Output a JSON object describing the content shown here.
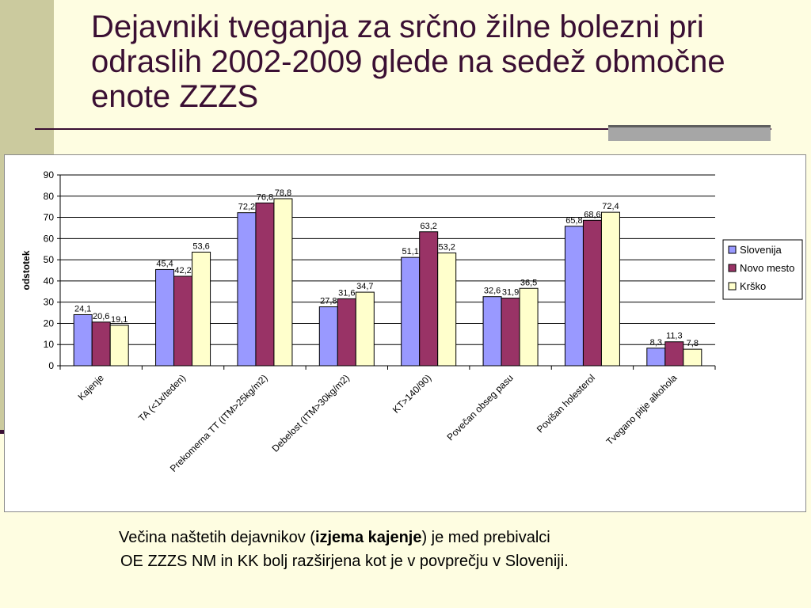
{
  "slide": {
    "title": "Dejavniki tveganja za srčno žilne bolezni pri odraslih 2002-2009 glede na sedež območne enote ZZZS",
    "caption": {
      "before": "Večina naštetih dejavnikov (",
      "bold": "izjema kajenje",
      "after": ") je med prebivalci",
      "line2": "OE ZZZS NM in KK bolj razširjena kot je v povprečju v Sloveniji."
    }
  },
  "colors": {
    "background": "#FEFDE1",
    "accent": "#3A0F33",
    "series": [
      "#9999FF",
      "#993366",
      "#FFFFCC"
    ]
  },
  "chart_data": {
    "type": "bar",
    "ylabel": "odstotek",
    "xlabel": "",
    "ylim": [
      0,
      90
    ],
    "yticks": [
      0,
      10,
      20,
      30,
      40,
      50,
      60,
      70,
      80,
      90
    ],
    "grid": true,
    "legend_position": "right",
    "categories": [
      "Kajenje",
      "TA (<1x/teden)",
      "Prekomerna TT (ITM>25kg/m2)",
      "Debelost (ITM>30kg/m2)",
      "KT>140/90)",
      "Povečan obseg pasu",
      "Povišan holesterol",
      "Tvegano pitje alkohola"
    ],
    "series": [
      {
        "name": "Slovenija",
        "values": [
          24.1,
          45.4,
          72.2,
          27.8,
          51.1,
          32.6,
          65.8,
          8.3
        ],
        "labels": [
          "24,1",
          "45,4",
          "72,2",
          "27,8",
          "51,1",
          "32,6",
          "65,8",
          "8,3"
        ]
      },
      {
        "name": "Novo mesto",
        "values": [
          20.6,
          42.2,
          76.8,
          31.6,
          63.2,
          31.9,
          68.6,
          11.3
        ],
        "labels": [
          "20,6",
          "42,2",
          "76,8",
          "31,6",
          "63,2",
          "31,9",
          "68,6",
          "11,3"
        ]
      },
      {
        "name": "Krško",
        "values": [
          19.1,
          53.6,
          78.8,
          34.7,
          53.2,
          36.5,
          72.4,
          7.8
        ],
        "labels": [
          "19,1",
          "53,6",
          "78,8",
          "34,7",
          "53,2",
          "36,5",
          "72,4",
          "7,8"
        ]
      }
    ]
  }
}
